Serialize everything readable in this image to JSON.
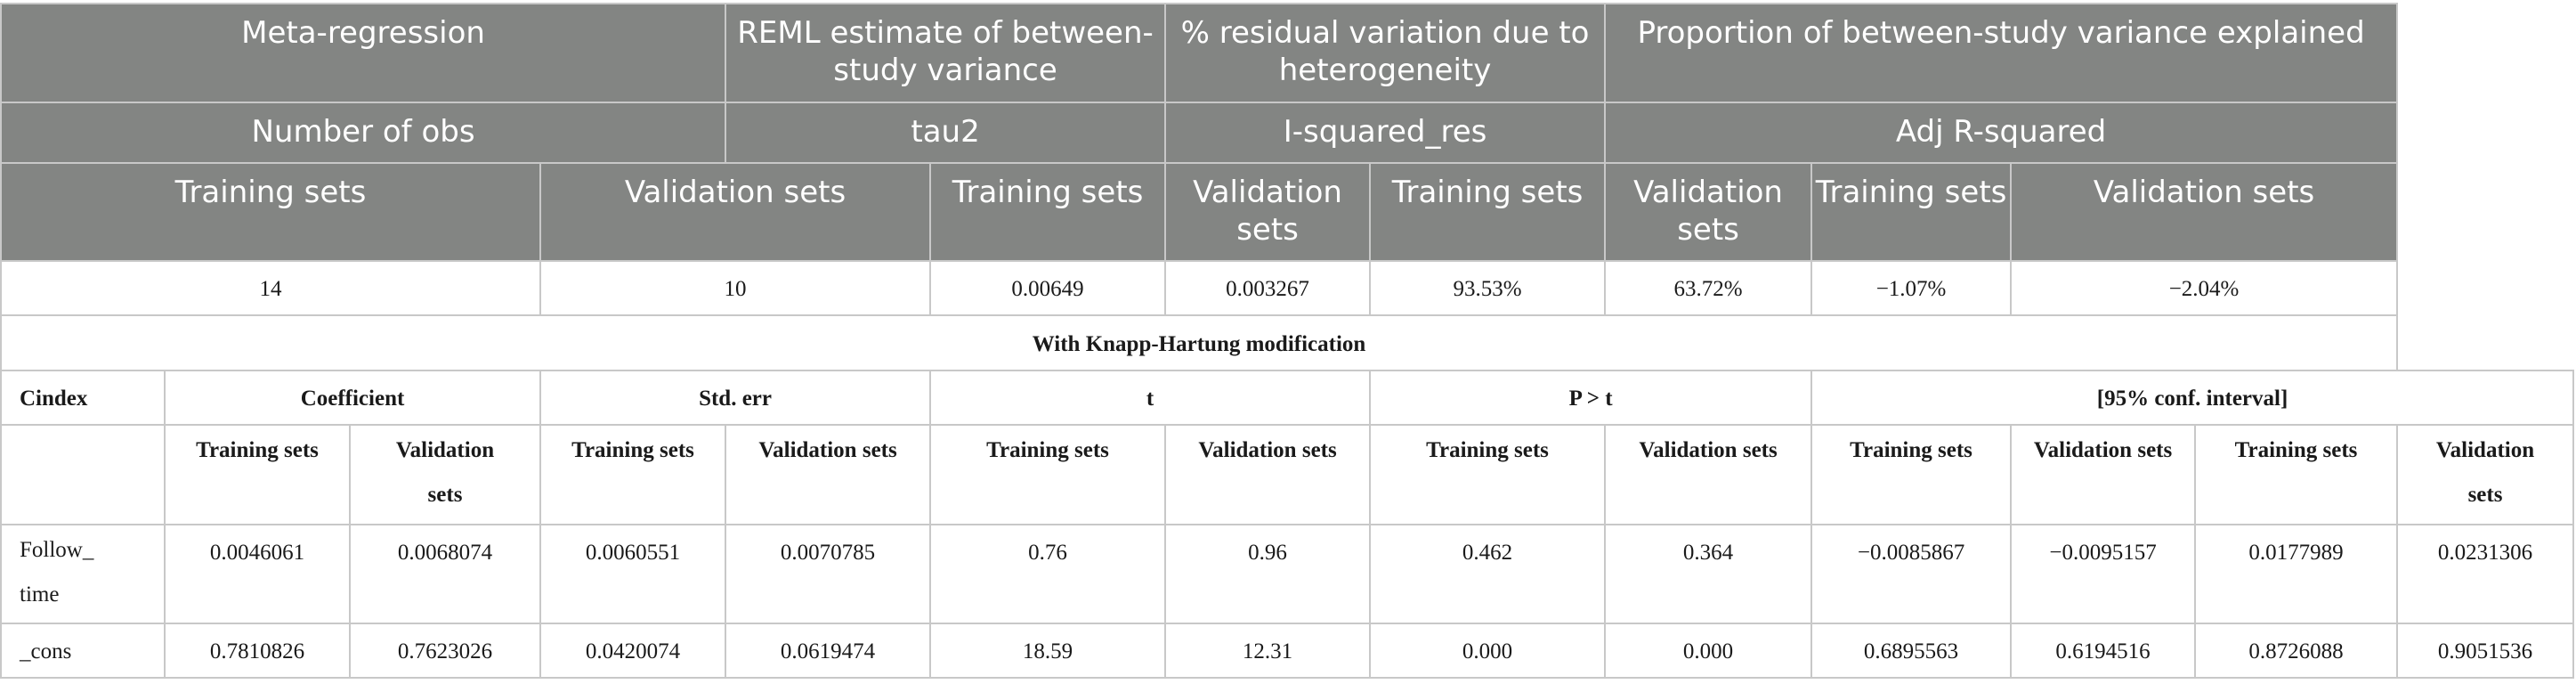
{
  "header": {
    "row1": [
      "Meta-regression",
      "REML estimate of between-study variance",
      "% residual variation due to heterogeneity",
      "Proportion of between-study variance explained"
    ],
    "row2": [
      "Number of obs",
      "tau2",
      "I-squared_res",
      "Adj R-squared"
    ],
    "row3": [
      "Training sets",
      "Validation sets",
      "Training sets",
      "Validation sets",
      "Training sets",
      "Validation sets",
      "Training sets",
      "Validation sets"
    ]
  },
  "summary_values": [
    "14",
    "10",
    "0.00649",
    "0.003267",
    "93.53%",
    "63.72%",
    "−1.07%",
    "−2.04%"
  ],
  "section_title": "With Knapp-Hartung modification",
  "columns": {
    "row_header": "Cindex",
    "groups": [
      "Coefficient",
      "Std. err",
      "t",
      "P > t",
      "[95% conf. interval]"
    ],
    "subheaders": [
      "Training sets",
      "Validation sets",
      "Training sets",
      "Validation sets",
      "Training sets",
      "Validation sets",
      "Training sets",
      "Validation sets",
      "Training sets",
      "Validation sets",
      "Training sets",
      "Validation sets"
    ]
  },
  "rows": [
    {
      "label": "Follow_ time",
      "values": [
        "0.0046061",
        "0.0068074",
        "0.0060551",
        "0.0070785",
        "0.76",
        "0.96",
        "0.462",
        "0.364",
        "−0.0085867",
        "−0.0095157",
        "0.0177989",
        "0.0231306"
      ]
    },
    {
      "label": "_cons",
      "values": [
        "0.7810826",
        "0.7623026",
        "0.0420074",
        "0.0619474",
        "18.59",
        "12.31",
        "0.000",
        "0.000",
        "0.6895563",
        "0.6194516",
        "0.8726088",
        "0.9051536"
      ]
    }
  ]
}
